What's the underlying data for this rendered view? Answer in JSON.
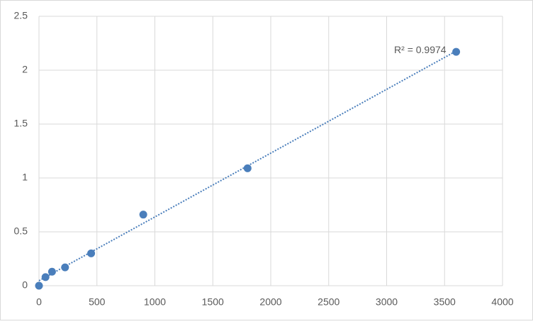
{
  "chart_data": {
    "type": "scatter",
    "x": [
      0,
      56.25,
      112.5,
      225,
      450,
      900,
      1800,
      3600
    ],
    "values": [
      0,
      0.08,
      0.13,
      0.17,
      0.3,
      0.66,
      1.09,
      2.17
    ],
    "color": "#4a7ebb",
    "trendline": "linear",
    "annotation": "R² = 0.9974",
    "xlim": [
      0,
      4000
    ],
    "xticks": [
      0,
      500,
      1000,
      1500,
      2000,
      2500,
      3000,
      3500,
      4000
    ],
    "ylim": [
      0,
      2.5
    ],
    "yticks": [
      0,
      0.5,
      1,
      1.5,
      2,
      2.5
    ],
    "grid": true
  }
}
